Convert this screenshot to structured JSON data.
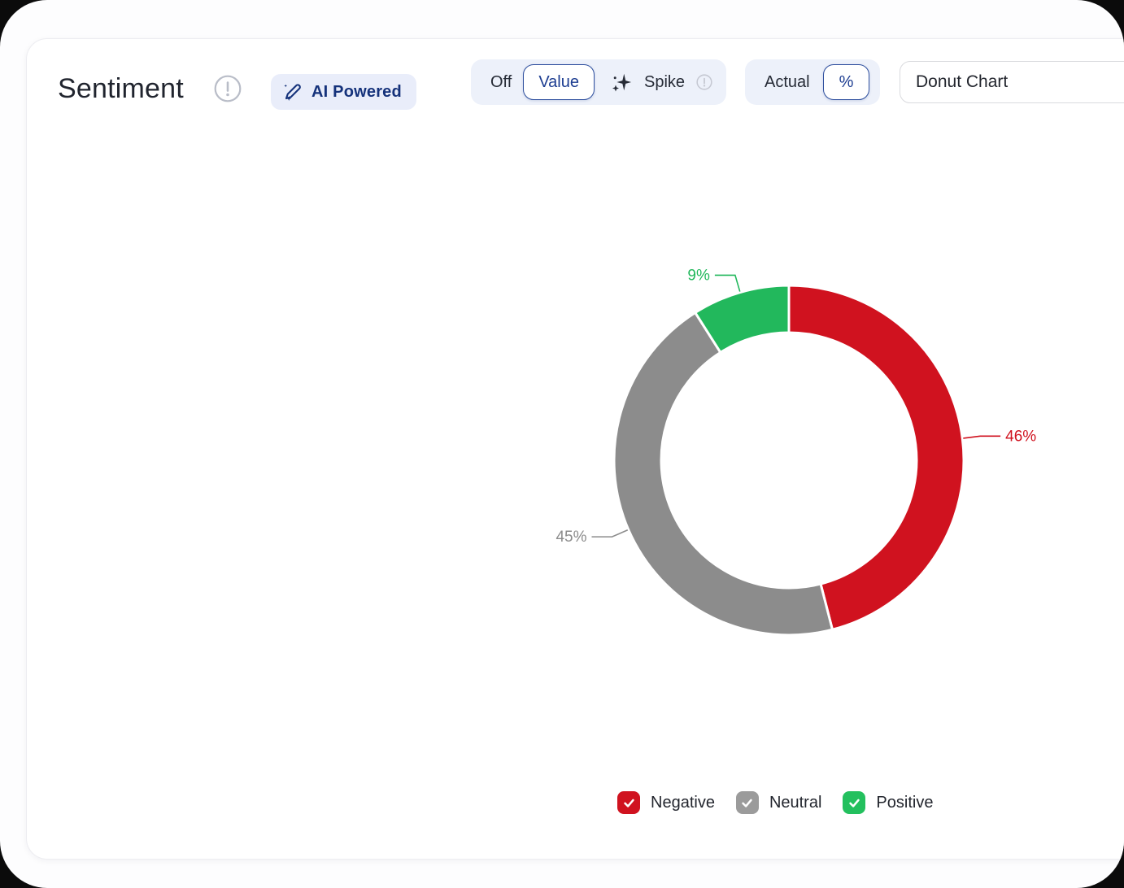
{
  "header": {
    "title": "Sentiment",
    "ai_badge": "AI Powered",
    "off_label": "Off",
    "value_label": "Value",
    "spike_label": "Spike",
    "actual_label": "Actual",
    "percent_label": "%",
    "chart_type": "Donut Chart",
    "selected_value_toggle": "Value",
    "selected_display_toggle": "%"
  },
  "chart_data": {
    "type": "pie",
    "subtype": "donut",
    "title": "Sentiment",
    "categories": [
      "Negative",
      "Neutral",
      "Positive"
    ],
    "values": [
      46,
      45,
      9
    ],
    "unit": "%",
    "slice_labels": [
      "46%",
      "45%",
      "9%"
    ],
    "colors": [
      "#d0121f",
      "#8c8c8c",
      "#22b85c"
    ],
    "start_angle_deg_from_top_clockwise": 0,
    "inner_radius_ratio": 0.73,
    "labels_position": "outside_with_leader_lines",
    "legend_position": "bottom",
    "legend": [
      {
        "label": "Negative",
        "checked": true,
        "color": "#d0121f"
      },
      {
        "label": "Neutral",
        "checked": true,
        "color": "#9b9b9b"
      },
      {
        "label": "Positive",
        "checked": true,
        "color": "#23c05e"
      }
    ]
  }
}
